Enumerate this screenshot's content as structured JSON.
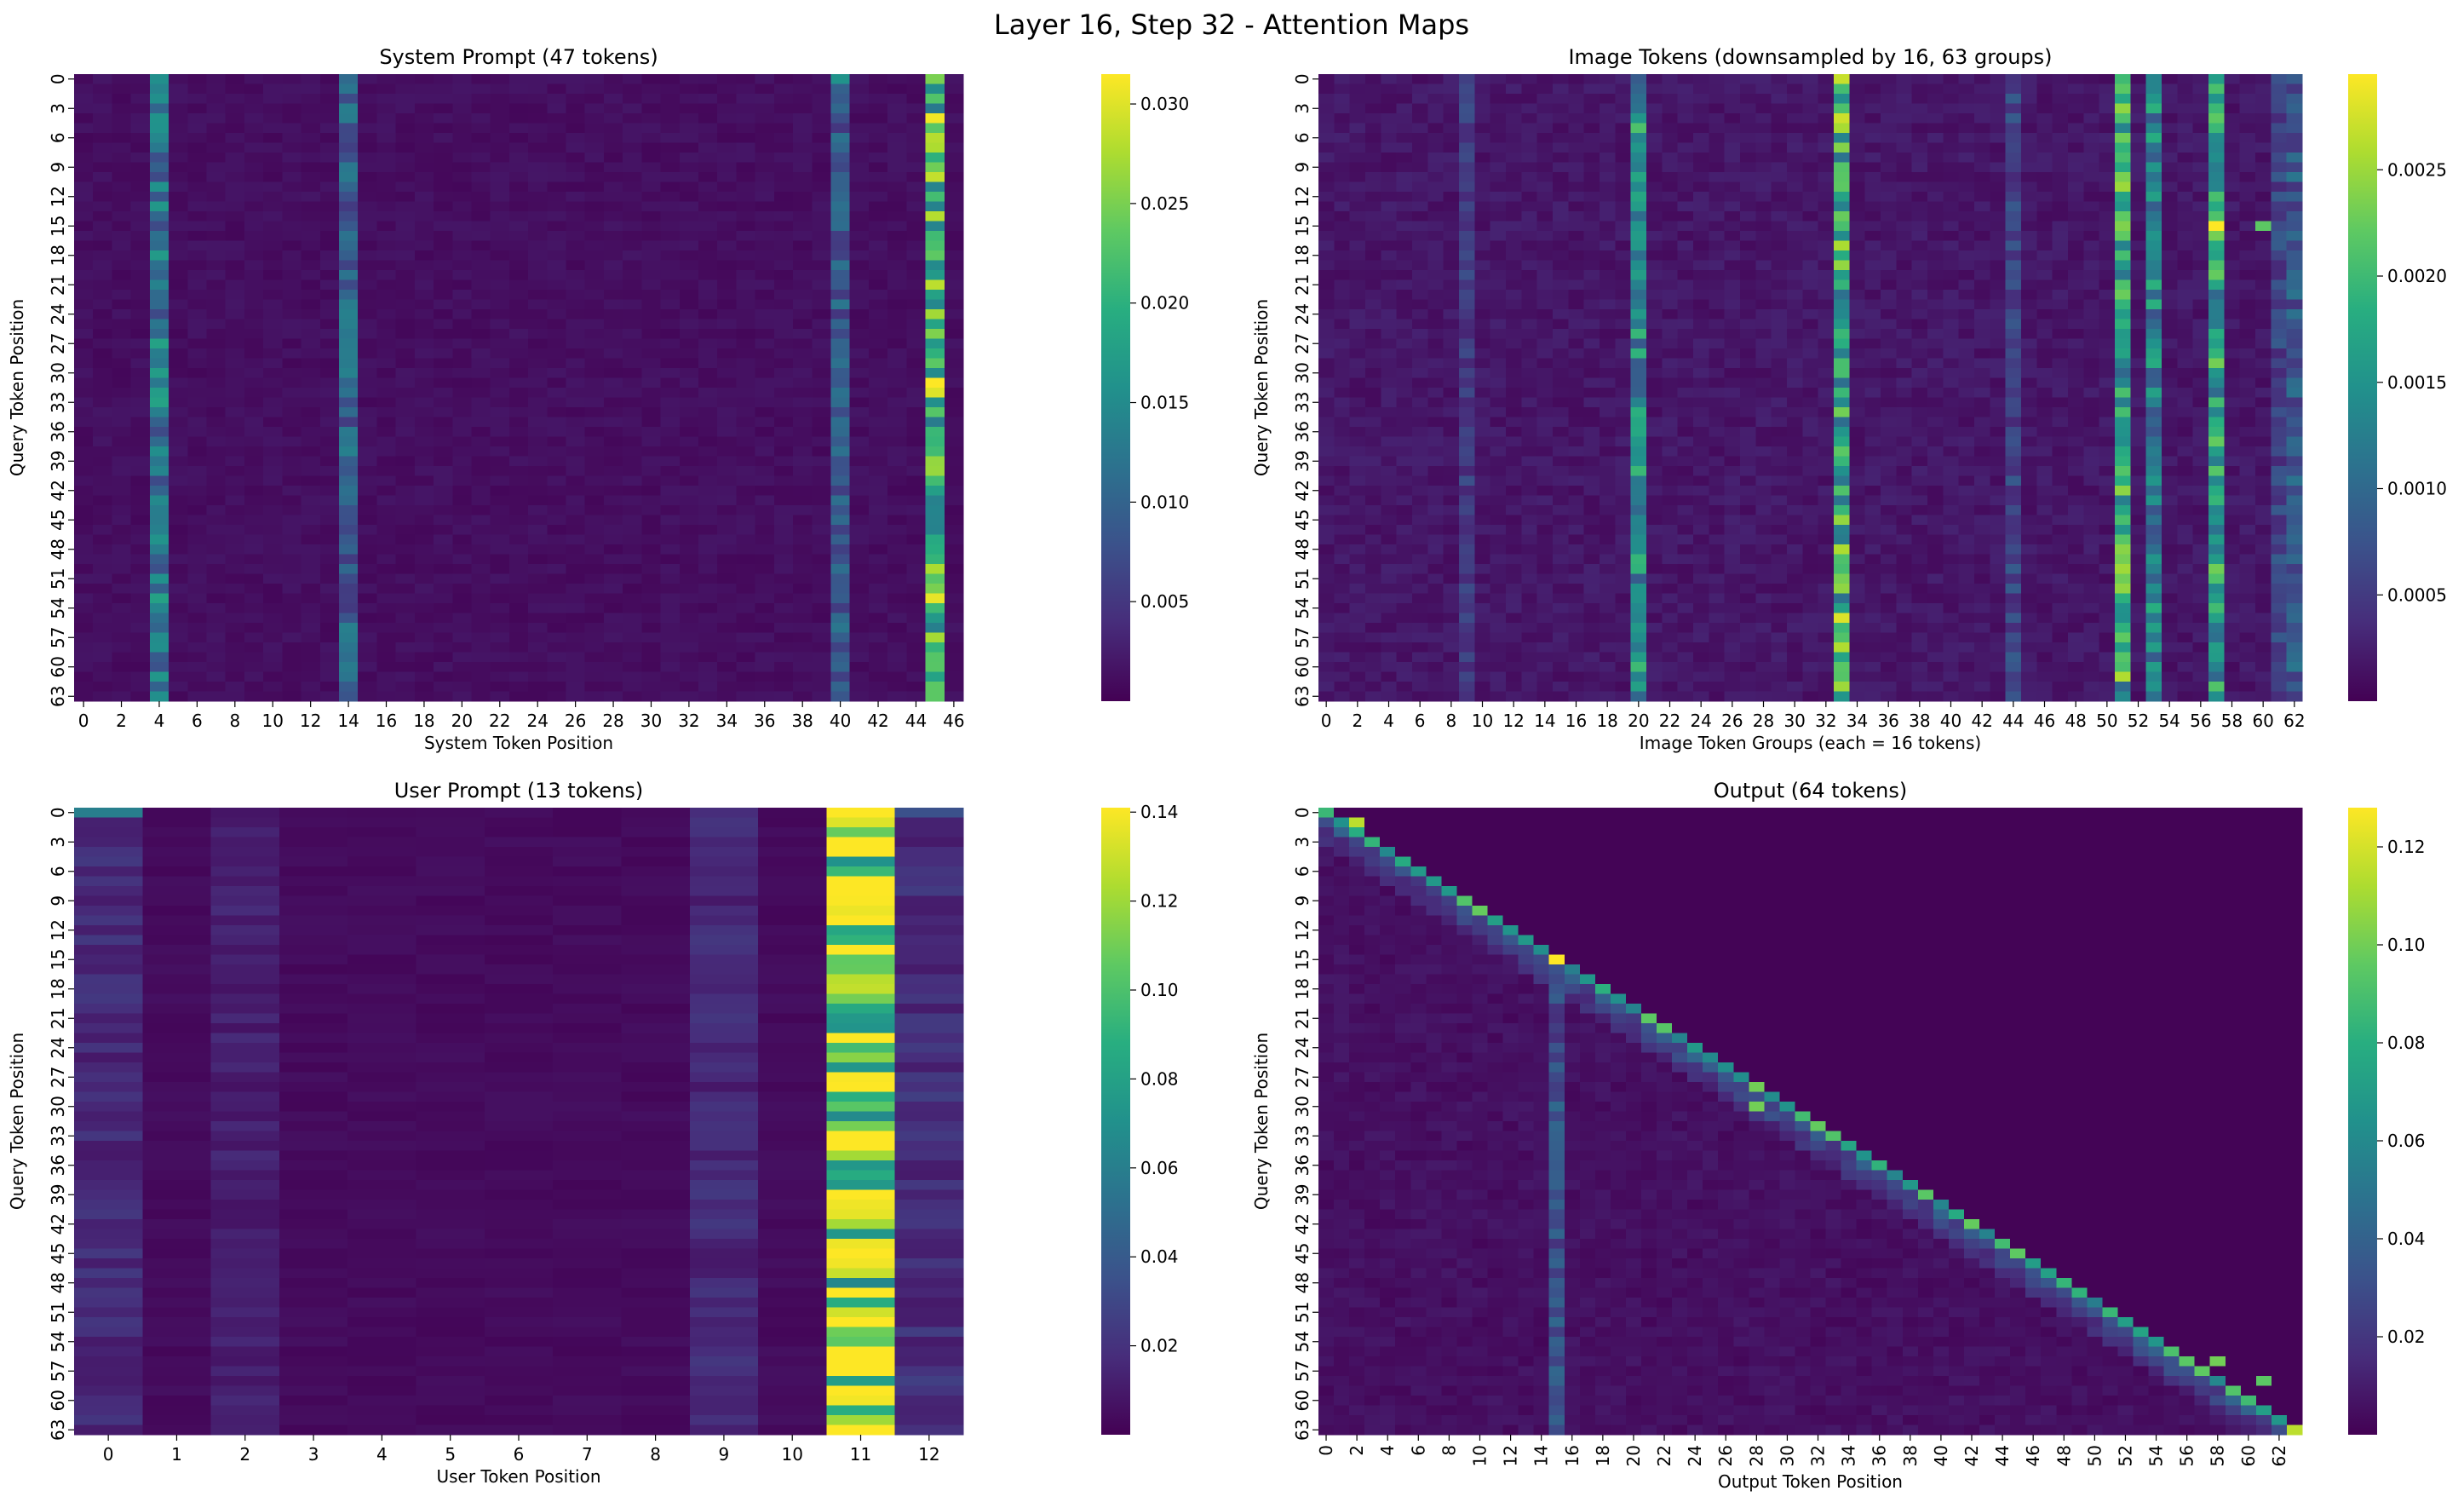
{
  "figure_title": "Layer 16, Step 32 - Attention Maps",
  "colormap": "viridis",
  "chart_data": [
    {
      "type": "heatmap",
      "id": "system",
      "title": "System Prompt (47 tokens)",
      "xlabel": "System Token Position",
      "ylabel": "Query Token Position",
      "cols": 47,
      "rows": 64,
      "x_tick_step": 2,
      "y_tick_step": 3,
      "x_tick_rotation": 0,
      "vmin": 0,
      "vmax": 0.0315,
      "colorbar_ticks": [
        0.005,
        0.01,
        0.015,
        0.02,
        0.025,
        0.03
      ],
      "colorbar_ticklabels": [
        "0.005",
        "0.010",
        "0.015",
        "0.020",
        "0.025",
        "0.030"
      ],
      "base_level": 0.0012,
      "highlight_columns": [
        {
          "col": 4,
          "value": 0.0125
        },
        {
          "col": 14,
          "value": 0.0095
        },
        {
          "col": 40,
          "value": 0.0085
        },
        {
          "col": 45,
          "value": 0.0215
        }
      ],
      "peak_cells": [
        {
          "row": 0,
          "col": 45,
          "value": 0.025
        },
        {
          "row": 6,
          "col": 45,
          "value": 0.028
        },
        {
          "row": 24,
          "col": 45,
          "value": 0.027
        },
        {
          "row": 31,
          "col": 45,
          "value": 0.0315
        },
        {
          "row": 33,
          "col": 4,
          "value": 0.018
        },
        {
          "row": 0,
          "col": 40,
          "value": 0.016
        }
      ]
    },
    {
      "type": "heatmap",
      "id": "image",
      "title": "Image Tokens (downsampled by 16, 63 groups)",
      "xlabel": "Image Token Groups (each = 16 tokens)",
      "ylabel": "Query Token Position",
      "cols": 63,
      "rows": 64,
      "x_tick_step": 2,
      "y_tick_step": 3,
      "x_tick_rotation": 0,
      "vmin": 0,
      "vmax": 0.00295,
      "colorbar_ticks": [
        0.0005,
        0.001,
        0.0015,
        0.002,
        0.0025
      ],
      "colorbar_ticklabels": [
        "0.0005",
        "0.0010",
        "0.0015",
        "0.0020",
        "0.0025"
      ],
      "base_level": 0.00018,
      "highlight_columns": [
        {
          "col": 9,
          "value": 0.0005
        },
        {
          "col": 20,
          "value": 0.0014
        },
        {
          "col": 33,
          "value": 0.0019
        },
        {
          "col": 44,
          "value": 0.0006
        },
        {
          "col": 51,
          "value": 0.0018
        },
        {
          "col": 53,
          "value": 0.0013
        },
        {
          "col": 57,
          "value": 0.0016
        },
        {
          "col": 61,
          "value": 0.0006
        },
        {
          "col": 62,
          "value": 0.0008
        }
      ],
      "peak_cells": [
        {
          "row": 0,
          "col": 33,
          "value": 0.0027
        },
        {
          "row": 15,
          "col": 57,
          "value": 0.00295
        },
        {
          "row": 15,
          "col": 60,
          "value": 0.0022
        },
        {
          "row": 55,
          "col": 33,
          "value": 0.0028
        },
        {
          "row": 14,
          "col": 57,
          "value": 0.0021
        },
        {
          "row": 5,
          "col": 20,
          "value": 0.0021
        }
      ]
    },
    {
      "type": "heatmap",
      "id": "user",
      "title": "User Prompt (13 tokens)",
      "xlabel": "User Token Position",
      "ylabel": "Query Token Position",
      "cols": 13,
      "rows": 64,
      "x_tick_step": 1,
      "y_tick_step": 3,
      "x_tick_rotation": 0,
      "vmin": 0,
      "vmax": 0.141,
      "colorbar_ticks": [
        0.02,
        0.04,
        0.06,
        0.08,
        0.1,
        0.12,
        0.14
      ],
      "colorbar_ticklabels": [
        "0.02",
        "0.04",
        "0.06",
        "0.08",
        "0.10",
        "0.12",
        "0.14"
      ],
      "base_level": 0.004,
      "highlight_columns": [
        {
          "col": 0,
          "value": 0.016
        },
        {
          "col": 2,
          "value": 0.012
        },
        {
          "col": 9,
          "value": 0.016
        },
        {
          "col": 11,
          "value": 0.112
        },
        {
          "col": 12,
          "value": 0.018
        }
      ],
      "peak_cells": [
        {
          "row": 14,
          "col": 11,
          "value": 0.141
        },
        {
          "row": 40,
          "col": 11,
          "value": 0.138
        },
        {
          "row": 41,
          "col": 11,
          "value": 0.136
        },
        {
          "row": 0,
          "col": 12,
          "value": 0.035
        },
        {
          "row": 0,
          "col": 0,
          "value": 0.06
        }
      ]
    },
    {
      "type": "heatmap",
      "id": "output",
      "title": "Output (64 tokens)",
      "xlabel": "Output Token Position",
      "ylabel": "Query Token Position",
      "cols": 64,
      "rows": 64,
      "x_tick_step": 2,
      "y_tick_step": 3,
      "x_tick_rotation": 90,
      "vmin": 0,
      "vmax": 0.128,
      "colorbar_ticks": [
        0.02,
        0.04,
        0.06,
        0.08,
        0.1,
        0.12
      ],
      "colorbar_ticklabels": [
        "0.02",
        "0.04",
        "0.06",
        "0.08",
        "0.10",
        "0.12"
      ],
      "base_level": 0.004,
      "diagonal_value": 0.075,
      "highlight_columns": [
        {
          "col": 15,
          "value": 0.03,
          "from_row": 15
        }
      ],
      "peak_cells": [
        {
          "row": 15,
          "col": 15,
          "value": 0.128
        },
        {
          "row": 1,
          "col": 2,
          "value": 0.115
        },
        {
          "row": 28,
          "col": 28,
          "value": 0.1
        },
        {
          "row": 30,
          "col": 28,
          "value": 0.1
        },
        {
          "row": 63,
          "col": 63,
          "value": 0.115
        },
        {
          "row": 56,
          "col": 58,
          "value": 0.1
        },
        {
          "row": 58,
          "col": 61,
          "value": 0.095
        }
      ]
    }
  ]
}
